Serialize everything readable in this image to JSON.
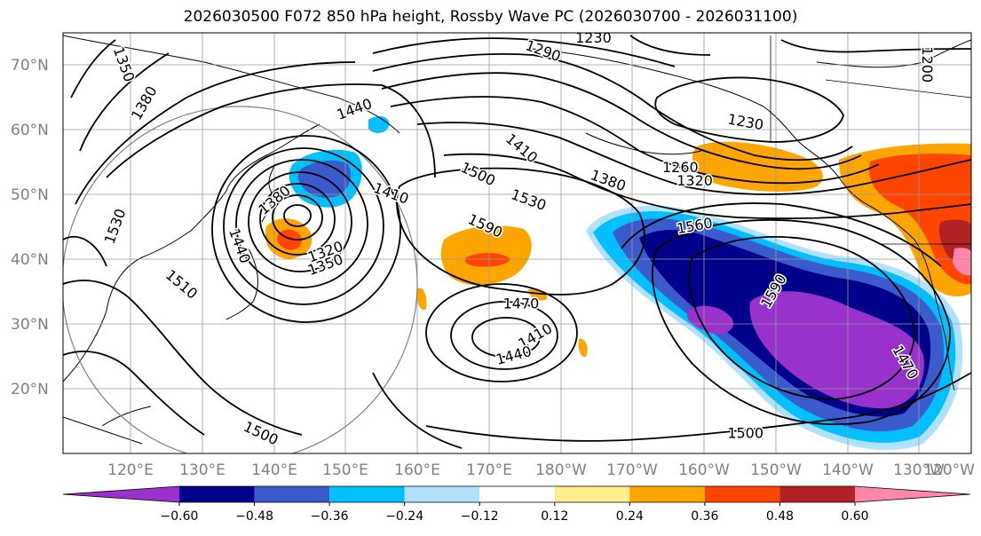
{
  "title": "2026030500 F072 850 hPa height, Rossby Wave PC (2026030700 - 2026031100)",
  "map": {
    "lon_labels": [
      "120°E",
      "130°E",
      "140°E",
      "150°E",
      "160°E",
      "170°E",
      "180°W",
      "170°W",
      "160°W",
      "150°W",
      "140°W",
      "130°W",
      "120°W"
    ],
    "lat_labels": [
      "70°N",
      "60°N",
      "50°N",
      "40°N",
      "30°N",
      "20°N"
    ],
    "lat_values": [
      70,
      60,
      50,
      40,
      30,
      20
    ]
  },
  "contours": {
    "labels": [
      {
        "text": "1350",
        "lon": 119,
        "lat": 70,
        "rot": 70
      },
      {
        "text": "1380",
        "lon": 122,
        "lat": 64,
        "rot": -60
      },
      {
        "text": "1440",
        "lon": 151,
        "lat": 63,
        "rot": -20
      },
      {
        "text": "1290",
        "lon": 177,
        "lat": 72,
        "rot": 20
      },
      {
        "text": "1230",
        "lon": 184,
        "lat": 74,
        "rot": 0
      },
      {
        "text": "1230",
        "lon": 205,
        "lat": 61,
        "rot": 10
      },
      {
        "text": "1200",
        "lon": 230,
        "lat": 70,
        "rot": 90
      },
      {
        "text": "1410",
        "lon": 174,
        "lat": 57,
        "rot": 40
      },
      {
        "text": "1500",
        "lon": 168,
        "lat": 53,
        "rot": 25
      },
      {
        "text": "1380",
        "lon": 186,
        "lat": 52,
        "rot": 20
      },
      {
        "text": "1260",
        "lon": 196,
        "lat": 54,
        "rot": 0
      },
      {
        "text": "1320",
        "lon": 198,
        "lat": 52,
        "rot": 0
      },
      {
        "text": "1530",
        "lon": 175,
        "lat": 49,
        "rot": 20
      },
      {
        "text": "1590",
        "lon": 169,
        "lat": 45,
        "rot": 25
      },
      {
        "text": "1560",
        "lon": 198,
        "lat": 45,
        "rot": -10
      },
      {
        "text": "1410",
        "lon": 156,
        "lat": 50,
        "rot": 20
      },
      {
        "text": "1380",
        "lon": 140,
        "lat": 49,
        "rot": -40
      },
      {
        "text": "1440",
        "lon": 135,
        "lat": 42,
        "rot": 70
      },
      {
        "text": "1530",
        "lon": 118,
        "lat": 45,
        "rot": -70
      },
      {
        "text": "1510",
        "lon": 127,
        "lat": 36,
        "rot": 40
      },
      {
        "text": "1320",
        "lon": 147,
        "lat": 41,
        "rot": -20
      },
      {
        "text": "1350",
        "lon": 147,
        "lat": 39,
        "rot": -20
      },
      {
        "text": "1470",
        "lon": 174,
        "lat": 33,
        "rot": 0
      },
      {
        "text": "1410",
        "lon": 176,
        "lat": 28,
        "rot": -30
      },
      {
        "text": "1440",
        "lon": 173,
        "lat": 25,
        "rot": -15
      },
      {
        "text": "1590",
        "lon": 209,
        "lat": 35,
        "rot": -60
      },
      {
        "text": "1470",
        "lon": 227,
        "lat": 24,
        "rot": 60
      },
      {
        "text": "1500",
        "lon": 138,
        "lat": 13,
        "rot": 25
      },
      {
        "text": "1500",
        "lon": 205,
        "lat": 13,
        "rot": 0
      }
    ]
  },
  "colorbar": {
    "tick_labels": [
      "−0.60",
      "−0.48",
      "−0.36",
      "−0.24",
      "−0.12",
      "0.12",
      "0.24",
      "0.36",
      "0.48",
      "0.60"
    ],
    "colors": [
      "#9932cc",
      "#00008b",
      "#3a5bcc",
      "#00bfff",
      "#b0e2ff",
      "#ffffff",
      "#ffec8b",
      "#ffa500",
      "#ff4500",
      "#b22222",
      "#ff88aa"
    ],
    "colors_note_hidden": true
  }
}
